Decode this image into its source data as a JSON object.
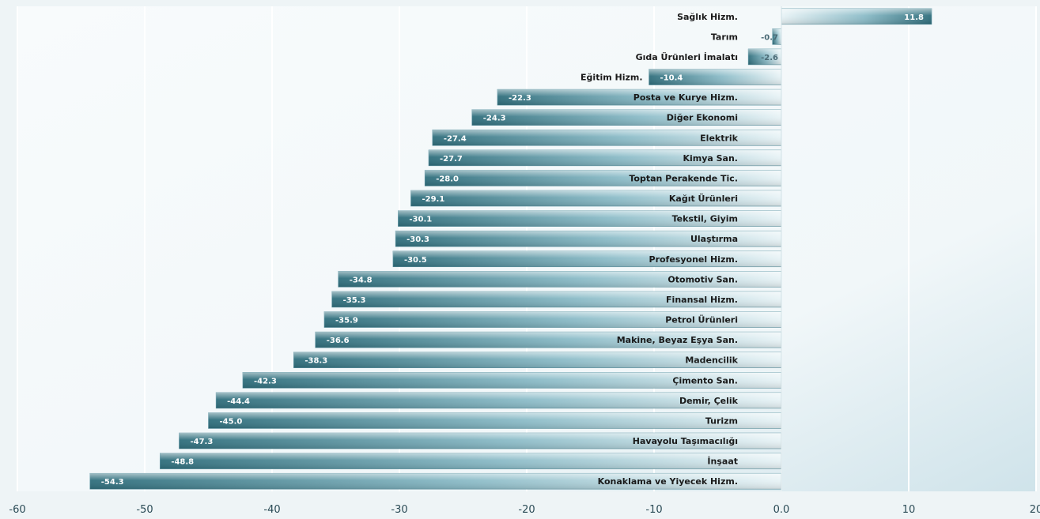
{
  "chart_data": {
    "type": "bar",
    "orientation": "horizontal",
    "categories": [
      "Sağlık Hizm.",
      "Tarım",
      "Gıda Ürünleri İmalatı",
      "Eğitim Hizm.",
      "Posta ve Kurye Hizm.",
      "Diğer Ekonomi",
      "Elektrik",
      "Kimya San.",
      "Toptan Perakende Tic.",
      "Kağıt Ürünleri",
      "Tekstil, Giyim",
      "Ulaştırma",
      "Profesyonel Hizm.",
      "Otomotiv San.",
      "Finansal Hizm.",
      "Petrol Ürünleri",
      "Makine, Beyaz Eşya San.",
      "Madencilik",
      "Çimento San.",
      "Demir, Çelik",
      "Turizm",
      "Havayolu Taşımacılığı",
      "İnşaat",
      "Konaklama ve Yiyecek Hizm."
    ],
    "values": [
      11.8,
      -0.7,
      -2.6,
      -10.4,
      -22.3,
      -24.3,
      -27.4,
      -27.7,
      -28.0,
      -29.1,
      -30.1,
      -30.3,
      -30.5,
      -34.8,
      -35.3,
      -35.9,
      -36.6,
      -38.3,
      -42.3,
      -44.4,
      -45.0,
      -47.3,
      -48.8,
      -54.3
    ],
    "value_labels": [
      "11.8",
      "-0.7",
      "-2.6",
      "-10.4",
      "-22.3",
      "-24.3",
      "-27.4",
      "-27.7",
      "-28.0",
      "-29.1",
      "-30.1",
      "-30.3",
      "-30.5",
      "-34.8",
      "-35.3",
      "-35.9",
      "-36.6",
      "-38.3",
      "-42.3",
      "-44.4",
      "-45.0",
      "-47.3",
      "-48.8",
      "-54.3"
    ],
    "xlim": [
      -60,
      20
    ],
    "xticks": [
      -60,
      -50,
      -40,
      -30,
      -20,
      -10,
      0,
      10,
      20
    ],
    "xtick_labels": [
      "-60",
      "-50",
      "-40",
      "-30",
      "-20",
      "-10",
      "0.0",
      "10",
      "20"
    ],
    "title": "",
    "xlabel": "",
    "ylabel": "",
    "grid": true,
    "legend": "none",
    "colors": {
      "bar_dark": "#2f6e7c",
      "bar_light": "#e8f3f6",
      "grid": "#ffffff",
      "plot_bg": "#f6fafb",
      "text": "#1a1a1a",
      "value_text": "#ffffff"
    }
  }
}
